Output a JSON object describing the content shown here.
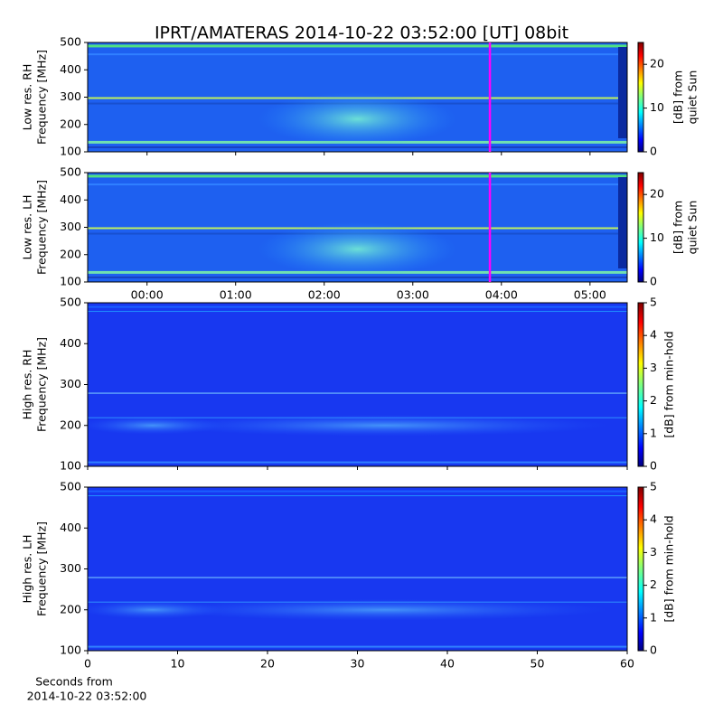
{
  "title": "IPRT/AMATERAS 2014-10-22 03:52:00 [UT]   08bit",
  "chart_data": [
    {
      "type": "spectrogram",
      "ylabel": [
        "Low res. RH",
        "Frequency [MHz]"
      ],
      "ylim": [
        100,
        500
      ],
      "yticks": [
        100,
        200,
        300,
        400,
        500
      ],
      "xlim": [
        -0.67,
        5.42
      ],
      "marker_x": 3.87,
      "marker_color": "#ff00ff",
      "clim": [
        0,
        25
      ],
      "cticks": [
        0,
        10,
        20
      ],
      "colorbar_label": [
        "[dB] from",
        "quiet Sun"
      ]
    },
    {
      "type": "spectrogram",
      "ylabel": [
        "Low res. LH",
        "Frequency [MHz]"
      ],
      "ylim": [
        100,
        500
      ],
      "yticks": [
        100,
        200,
        300,
        400,
        500
      ],
      "xlim": [
        -0.67,
        5.42
      ],
      "xticks": [
        {
          "value": 0,
          "label": "00:00"
        },
        {
          "value": 1,
          "label": "01:00"
        },
        {
          "value": 2,
          "label": "02:00"
        },
        {
          "value": 3,
          "label": "03:00"
        },
        {
          "value": 4,
          "label": "04:00"
        },
        {
          "value": 5,
          "label": "05:00"
        }
      ],
      "marker_x": 3.87,
      "marker_color": "#ff00ff",
      "clim": [
        0,
        25
      ],
      "cticks": [
        0,
        10,
        20
      ],
      "colorbar_label": [
        "[dB] from",
        "quiet Sun"
      ]
    },
    {
      "type": "spectrogram",
      "ylabel": [
        "High res. RH",
        "Frequency [MHz]"
      ],
      "ylim": [
        100,
        500
      ],
      "yticks": [
        100,
        200,
        300,
        400,
        500
      ],
      "xlim": [
        0,
        60
      ],
      "clim": [
        0,
        5
      ],
      "cticks": [
        0,
        1,
        2,
        3,
        4,
        5
      ],
      "colorbar_label": [
        "[dB] from min-hold"
      ]
    },
    {
      "type": "spectrogram",
      "ylabel": [
        "High res. LH",
        "Frequency [MHz]"
      ],
      "ylim": [
        100,
        500
      ],
      "yticks": [
        100,
        200,
        300,
        400,
        500
      ],
      "xlim": [
        0,
        60
      ],
      "xticks": [
        0,
        10,
        20,
        30,
        40,
        50,
        60
      ],
      "xlabel": [
        "Seconds from",
        "2014-10-22 03:52:00"
      ],
      "clim": [
        0,
        5
      ],
      "cticks": [
        0,
        1,
        2,
        3,
        4,
        5
      ],
      "colorbar_label": [
        "[dB] from min-hold"
      ]
    }
  ]
}
